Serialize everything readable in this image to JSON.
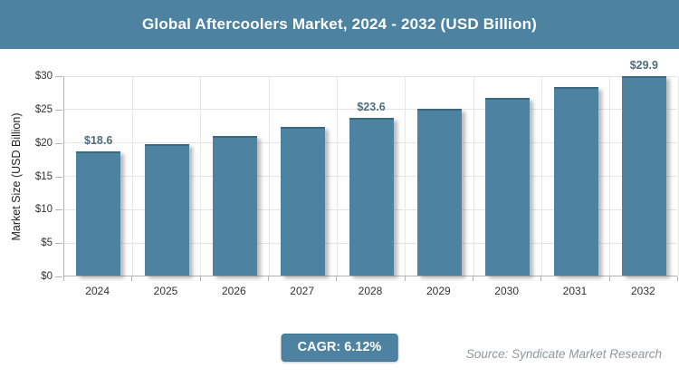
{
  "title_bar": {
    "title": "Global Aftercoolers Market, 2024 - 2032 (USD Billion)",
    "bg_color": "#4d83a1",
    "text_color": "#ffffff"
  },
  "chart_data": {
    "type": "bar",
    "title": "Global Aftercoolers Market, 2024 - 2032 (USD Billion)",
    "categories": [
      "2024",
      "2025",
      "2026",
      "2027",
      "2028",
      "2029",
      "2030",
      "2031",
      "2032"
    ],
    "values": [
      18.6,
      19.7,
      20.9,
      22.2,
      23.6,
      25.0,
      26.6,
      28.2,
      29.9
    ],
    "data_labels": [
      "$18.6",
      null,
      null,
      null,
      "$23.6",
      null,
      null,
      null,
      "$29.9"
    ],
    "xlabel": "",
    "ylabel": "Market Size (USD Billion)",
    "ylim": [
      0,
      30
    ],
    "ytick_step": 5,
    "ytick_labels": [
      "$0",
      "$5",
      "$10",
      "$15",
      "$20",
      "$25",
      "$30"
    ],
    "grid": true,
    "legend": false,
    "bar_color": "#4d83a1",
    "value_label_color": "#4e6d7e"
  },
  "footer": {
    "cagr_badge": "CAGR: 6.12%",
    "source": "Source: Syndicate Market Research",
    "badge_color": "#4d83a1"
  }
}
